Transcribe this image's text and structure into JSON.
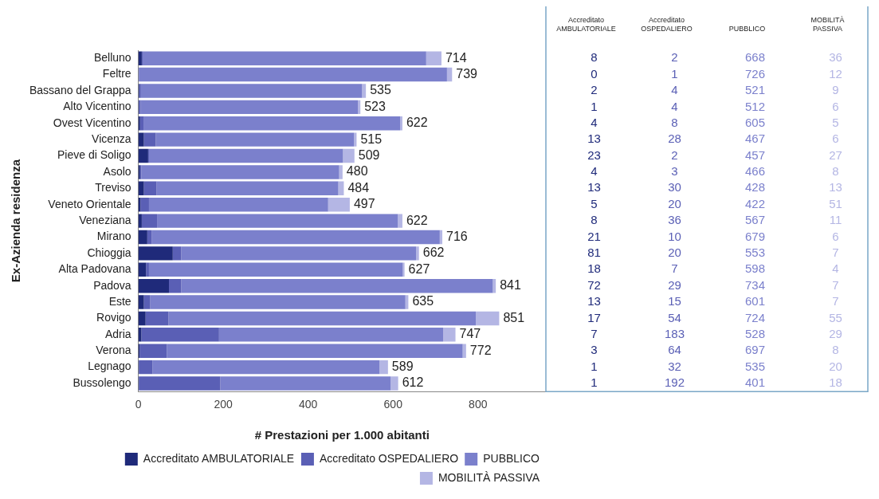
{
  "chart_data": {
    "type": "bar",
    "orientation": "horizontal",
    "stacked": true,
    "xlabel": "# Prestazioni per 1.000 abitanti",
    "ylabel": "Ex-Azienda residenza",
    "categories": [
      "Belluno",
      "Feltre",
      "Bassano del Grappa",
      "Alto Vicentino",
      "Ovest Vicentino",
      "Vicenza",
      "Pieve di Soligo",
      "Asolo",
      "Treviso",
      "Veneto Orientale",
      "Veneziana",
      "Mirano",
      "Chioggia",
      "Alta Padovana",
      "Padova",
      "Este",
      "Rovigo",
      "Adria",
      "Verona",
      "Legnago",
      "Bussolengo"
    ],
    "series": [
      {
        "name": "Accreditato AMBULATORIALE",
        "color": "#1f2a7a",
        "values": [
          8,
          0,
          2,
          1,
          4,
          13,
          23,
          4,
          13,
          5,
          8,
          21,
          81,
          18,
          72,
          13,
          17,
          7,
          3,
          1,
          1
        ]
      },
      {
        "name": "Accreditato OSPEDALIERO",
        "color": "#5a5fb5",
        "values": [
          2,
          1,
          4,
          4,
          8,
          28,
          2,
          3,
          30,
          20,
          36,
          10,
          20,
          7,
          29,
          15,
          54,
          183,
          64,
          32,
          192
        ]
      },
      {
        "name": "PUBBLICO",
        "color": "#7b80cc",
        "values": [
          668,
          726,
          521,
          512,
          605,
          467,
          457,
          466,
          428,
          422,
          567,
          679,
          553,
          598,
          734,
          601,
          724,
          528,
          697,
          535,
          401
        ]
      },
      {
        "name": "MOBILITÀ PASSIVA",
        "color": "#b4b6e4",
        "values": [
          36,
          12,
          9,
          6,
          5,
          6,
          27,
          8,
          13,
          51,
          11,
          6,
          7,
          4,
          7,
          7,
          55,
          29,
          8,
          20,
          18
        ]
      }
    ],
    "totals": [
      "714",
      "739",
      "535",
      "523",
      "622",
      "515",
      "509",
      "480",
      "484",
      "497",
      "622",
      "716",
      "662",
      "627",
      "841",
      "635",
      "851",
      "747",
      "772",
      "589",
      "612"
    ],
    "data_labels": true,
    "xlim": [
      0,
      960
    ],
    "xticks": [
      0,
      200,
      400,
      600,
      800
    ],
    "grid": false,
    "legend": "bottom"
  }
}
